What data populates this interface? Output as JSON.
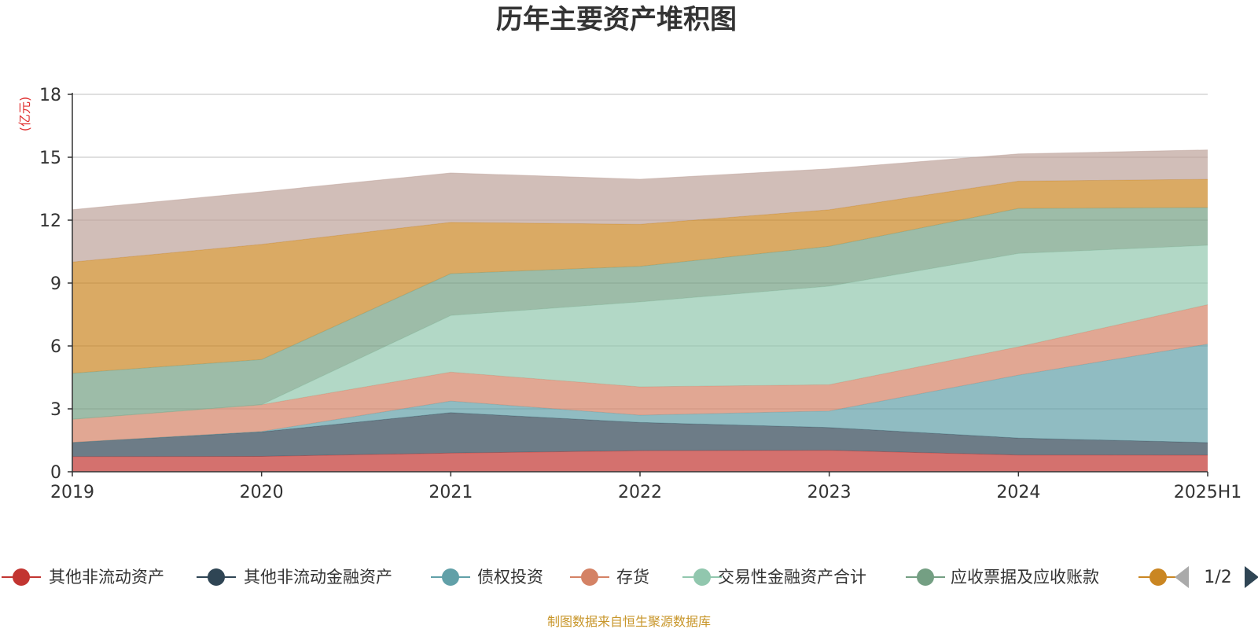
{
  "chart_data": {
    "type": "area",
    "title": "历年主要资产堆积图",
    "ylabel": "(亿元)",
    "ylim": [
      0,
      18
    ],
    "yticks": [
      0,
      3,
      6,
      9,
      12,
      15,
      18
    ],
    "grid": true,
    "stacked": true,
    "categories": [
      "2019",
      "2020",
      "2021",
      "2022",
      "2023",
      "2024",
      "2025H1"
    ],
    "series": [
      {
        "name": "其他非流动资产",
        "color": "#c23531",
        "values": [
          0.72,
          0.73,
          0.89,
          1.0,
          1.02,
          0.8,
          0.79
        ]
      },
      {
        "name": "其他非流动金融资产",
        "color": "#2f4554",
        "values": [
          0.68,
          1.17,
          1.93,
          1.35,
          1.09,
          0.81,
          0.6
        ]
      },
      {
        "name": "债权投资",
        "color": "#61a0a8",
        "values": [
          0.0,
          0.02,
          0.55,
          0.35,
          0.79,
          3.0,
          4.7
        ]
      },
      {
        "name": "存货",
        "color": "#d48265",
        "values": [
          1.1,
          1.28,
          1.38,
          1.35,
          1.25,
          1.35,
          1.88
        ]
      },
      {
        "name": "交易性金融资产合计",
        "color": "#91c7ae",
        "values": [
          0.0,
          0.0,
          2.7,
          4.05,
          4.7,
          4.45,
          2.83
        ]
      },
      {
        "name": "应收票据及应收账款",
        "color": "#749f83",
        "values": [
          2.2,
          2.15,
          2.0,
          1.7,
          1.9,
          2.15,
          1.8
        ]
      },
      {
        "name": "",
        "color": "#ca8622",
        "values": [
          5.3,
          5.5,
          2.45,
          2.0,
          1.75,
          1.3,
          1.35
        ]
      },
      {
        "name": "",
        "color": "#bda29a",
        "values": [
          2.5,
          2.5,
          2.35,
          2.15,
          1.95,
          1.3,
          1.4
        ]
      }
    ]
  },
  "legend": {
    "page_indicator": "1/2"
  },
  "footer": {
    "source": "制图数据来自恒生聚源数据库"
  }
}
